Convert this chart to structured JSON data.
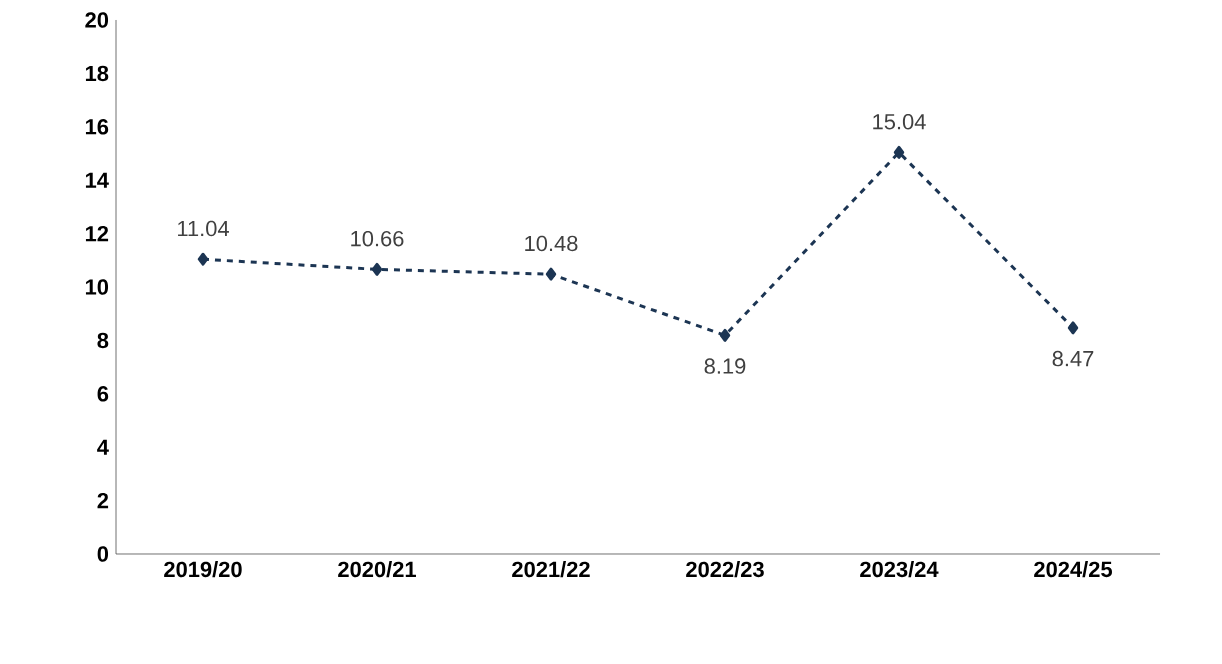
{
  "chart_data": {
    "type": "line",
    "categories": [
      "2019/20",
      "2020/21",
      "2021/22",
      "2022/23",
      "2023/24",
      "2024/25"
    ],
    "values": [
      11.04,
      10.66,
      10.48,
      8.19,
      15.04,
      8.47
    ],
    "color": "#1c3553",
    "ylim": [
      0,
      20
    ],
    "yticks": [
      0,
      2,
      4,
      6,
      8,
      10,
      12,
      14,
      16,
      18,
      20
    ],
    "data_labels": true,
    "marker": "diamond",
    "line_style": "dashed",
    "grid": false
  }
}
